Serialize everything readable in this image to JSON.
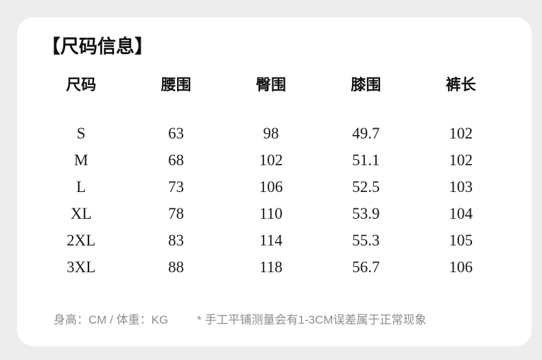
{
  "card": {
    "title": "【尺码信息】",
    "size_table": {
      "columns": [
        "尺码",
        "腰围",
        "臀围",
        "膝围",
        "裤长"
      ],
      "rows": [
        [
          "S",
          "63",
          "98",
          "49.7",
          "102"
        ],
        [
          "M",
          "68",
          "102",
          "51.1",
          "102"
        ],
        [
          "L",
          "73",
          "106",
          "52.5",
          "103"
        ],
        [
          "XL",
          "78",
          "110",
          "53.9",
          "104"
        ],
        [
          "2XL",
          "83",
          "114",
          "55.3",
          "105"
        ],
        [
          "3XL",
          "88",
          "118",
          "56.7",
          "106"
        ]
      ]
    },
    "footer": {
      "units_note": "身高：CM / 体重：KG",
      "measure_note": "* 手工平铺测量会有1-3CM误差属于正常现象"
    }
  },
  "colors": {
    "background": "#ededed",
    "card_background": "#ffffff",
    "heading_text": "#111111",
    "body_text": "#1a1a1a",
    "muted_text": "#8c8c8c"
  }
}
